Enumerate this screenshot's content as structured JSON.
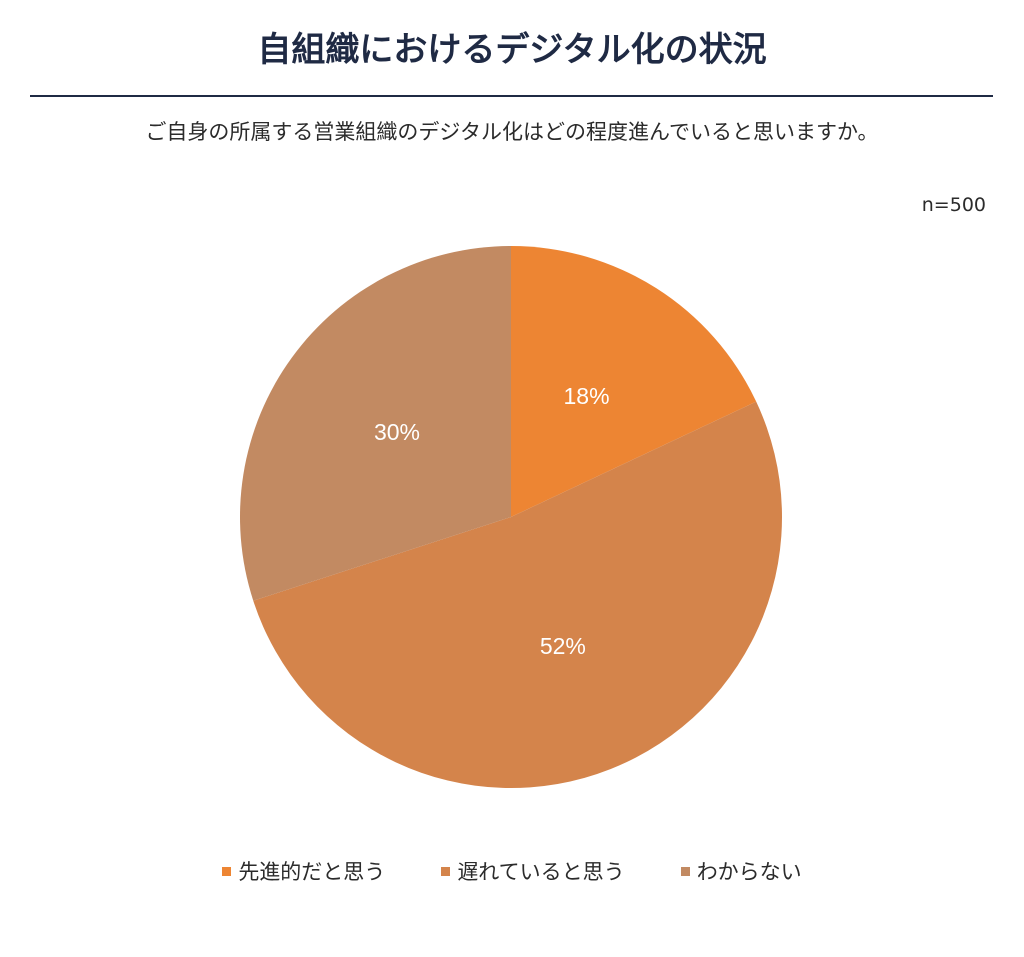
{
  "header": {
    "title": "自組織におけるデジタル化の状況",
    "question": "ご自身の所属する営業組織のデジタル化はどの程度進んでいると思いますか。",
    "sample_size": "n=500"
  },
  "chart_data": {
    "type": "pie",
    "categories": [
      "先進的だと思う",
      "遅れていると思う",
      "わからない"
    ],
    "values": [
      18,
      52,
      30
    ],
    "labels": [
      "18%",
      "52%",
      "30%"
    ],
    "colors": [
      "#ED8533",
      "#D4844B",
      "#C28A62"
    ],
    "legend_position": "bottom"
  }
}
